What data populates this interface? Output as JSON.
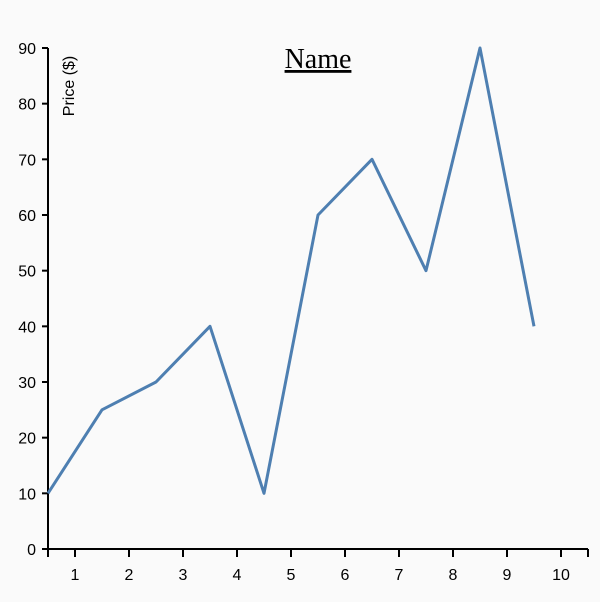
{
  "chart_data": {
    "type": "line",
    "title": "Name",
    "xlabel": "",
    "ylabel": "Price ($)",
    "x": [
      0.5,
      1.5,
      2.5,
      3.5,
      4.5,
      5.5,
      6.5,
      7.5,
      8.5,
      9.5
    ],
    "series": [
      {
        "values": [
          10,
          25,
          30,
          40,
          10,
          60,
          70,
          50,
          90,
          40
        ],
        "color": "#4e7fb1"
      }
    ],
    "xlim": [
      0.5,
      10.5
    ],
    "ylim": [
      0,
      90
    ],
    "x_ticks": [
      "1",
      "2",
      "3",
      "4",
      "5",
      "6",
      "7",
      "8",
      "9",
      "10"
    ],
    "y_ticks": [
      "0",
      "10",
      "20",
      "30",
      "40",
      "50",
      "60",
      "70",
      "80",
      "90"
    ],
    "grid": false,
    "legend": "none"
  }
}
